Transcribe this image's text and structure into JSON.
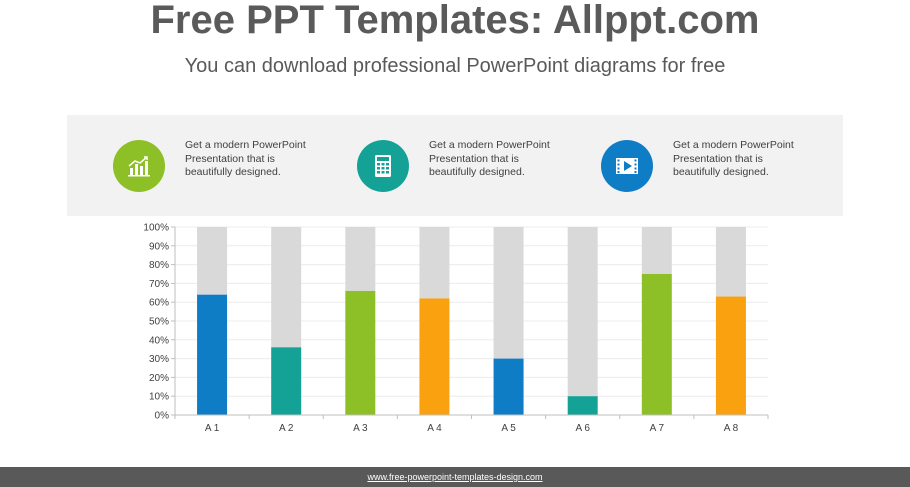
{
  "header": {
    "title": "Free PPT Templates: Allppt.com",
    "subtitle": "You can download professional PowerPoint diagrams for free"
  },
  "info_items": [
    {
      "icon": "bar-chart-icon",
      "color": "#8dbf27",
      "text": "Get a modern PowerPoint  Presentation that is beautifully designed."
    },
    {
      "icon": "calculator-icon",
      "color": "#15a296",
      "text": "Get a modern PowerPoint  Presentation that is beautifully designed."
    },
    {
      "icon": "video-icon",
      "color": "#0f7cc6",
      "text": "Get a modern PowerPoint  Presentation that is beautifully designed."
    }
  ],
  "chart_data": {
    "type": "bar",
    "stacked": "100% stacked",
    "categories": [
      "A 1",
      "A 2",
      "A 3",
      "A 4",
      "A 5",
      "A 6",
      "A 7",
      "A 8"
    ],
    "values": [
      64,
      36,
      66,
      62,
      30,
      10,
      75,
      63
    ],
    "remainder_color": "#d9d9d9",
    "bar_colors": [
      "#0f7cc6",
      "#15a296",
      "#8dbf27",
      "#f9a10e",
      "#0f7cc6",
      "#15a296",
      "#8dbf27",
      "#f9a10e"
    ],
    "ylim": [
      0,
      100
    ],
    "yticks": [
      "0%",
      "10%",
      "20%",
      "30%",
      "40%",
      "50%",
      "60%",
      "70%",
      "80%",
      "90%",
      "100%"
    ],
    "grid": true
  },
  "footer": {
    "link": "www.free-powerpoint-templates-design.com"
  }
}
